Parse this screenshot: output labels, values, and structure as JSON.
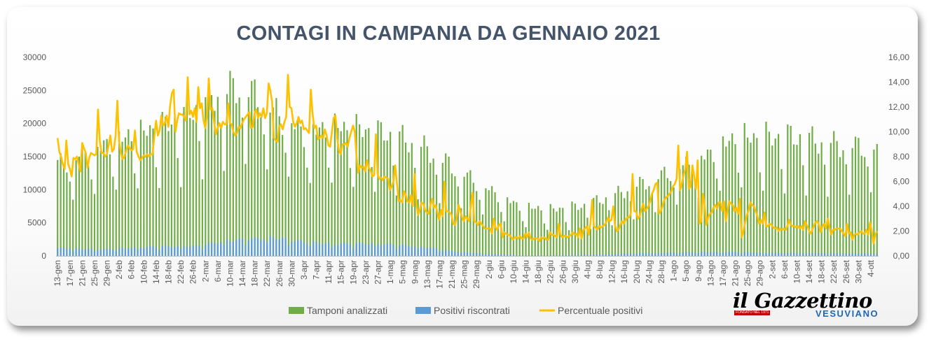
{
  "title": "CONTAGI IN CAMPANIA DA GENNAIO 2021",
  "logo": {
    "main": "il Gazzettino",
    "sub": "VESUVIANO",
    "tag": "FONDATO NEL 1971"
  },
  "colors": {
    "tamponi": "#70ad47",
    "positivi": "#5b9bd5",
    "percentuale": "#ffc000",
    "title": "#44546a",
    "axis_text": "#595959"
  },
  "chart_data": {
    "type": "bar",
    "title": "CONTAGI IN CAMPANIA DA GENNAIO 2021",
    "x_start": "2021-01-13",
    "x_end": "2021-10-06",
    "y_left": {
      "min": 0,
      "max": 30000,
      "ticks": [
        "0",
        "5000",
        "10000",
        "15000",
        "20000",
        "25000",
        "30000"
      ]
    },
    "y_right": {
      "min": 0,
      "max": 16,
      "ticks": [
        "0,00",
        "2,00",
        "4,00",
        "6,00",
        "8,00",
        "10,00",
        "12,00",
        "14,00",
        "16,00"
      ]
    },
    "x_tick_labels": [
      "13-gen",
      "17-gen",
      "21-gen",
      "25-gen",
      "29-gen",
      "2-feb",
      "6-feb",
      "10-feb",
      "14-feb",
      "18-feb",
      "22-feb",
      "26-feb",
      "2-mar",
      "6-mar",
      "10-mar",
      "14-mar",
      "18-mar",
      "22-mar",
      "26-mar",
      "30-mar",
      "3-apr",
      "7-apr",
      "11-apr",
      "15-apr",
      "19-apr",
      "23-apr",
      "27-apr",
      "1-mag",
      "5-mag",
      "9-mag",
      "13-mag",
      "17-mag",
      "21-mag",
      "25-mag",
      "29-mag",
      "2-giu",
      "6-giu",
      "10-giu",
      "14-giu",
      "18-giu",
      "22-giu",
      "26-giu",
      "30-giu",
      "4-lug",
      "8-lug",
      "12-lug",
      "16-lug",
      "20-lug",
      "24-lug",
      "28-lug",
      "1-ago",
      "5-ago",
      "9-ago",
      "13-ago",
      "17-ago",
      "21-ago",
      "25-ago",
      "29-ago",
      "2-set",
      "6-set",
      "10-set",
      "14-set",
      "18-set",
      "22-set",
      "26-set",
      "30-set",
      "4-ott"
    ],
    "grid": false,
    "legend_position": "bottom",
    "series": [
      {
        "name": "Tamponi analizzati",
        "type": "bar",
        "axis": "left",
        "anchors": [
          [
            0,
            13800
          ],
          [
            10,
            15500
          ],
          [
            20,
            17500
          ],
          [
            30,
            19000
          ],
          [
            40,
            20500
          ],
          [
            50,
            24000
          ],
          [
            60,
            25800
          ],
          [
            70,
            22000
          ],
          [
            80,
            18500
          ],
          [
            90,
            19500
          ],
          [
            100,
            19000
          ],
          [
            110,
            18000
          ],
          [
            120,
            16000
          ],
          [
            130,
            13000
          ],
          [
            140,
            10000
          ],
          [
            150,
            7500
          ],
          [
            160,
            7000
          ],
          [
            170,
            7500
          ],
          [
            180,
            9000
          ],
          [
            190,
            11000
          ],
          [
            200,
            13000
          ],
          [
            210,
            15000
          ],
          [
            220,
            18000
          ],
          [
            230,
            18000
          ],
          [
            240,
            18000
          ],
          [
            250,
            17000
          ],
          [
            266,
            16500
          ]
        ]
      },
      {
        "name": "Positivi riscontrati",
        "type": "bar",
        "axis": "left",
        "anchors": [
          [
            0,
            1200
          ],
          [
            15,
            1000
          ],
          [
            30,
            1400
          ],
          [
            45,
            1500
          ],
          [
            55,
            2300
          ],
          [
            70,
            2800
          ],
          [
            80,
            2100
          ],
          [
            90,
            1800
          ],
          [
            100,
            1900
          ],
          [
            110,
            1700
          ],
          [
            120,
            1300
          ],
          [
            130,
            600
          ],
          [
            140,
            300
          ],
          [
            150,
            130
          ],
          [
            165,
            130
          ],
          [
            175,
            200
          ],
          [
            185,
            350
          ],
          [
            200,
            500
          ],
          [
            210,
            600
          ],
          [
            220,
            600
          ],
          [
            230,
            450
          ],
          [
            245,
            400
          ],
          [
            266,
            350
          ]
        ]
      },
      {
        "name": "Percentuale positivi",
        "type": "line",
        "axis": "right",
        "values": [
          9.5,
          8.4,
          8.0,
          7.4,
          7.0,
          9.3,
          7.4,
          7.0,
          6.4,
          7.9,
          7.8,
          8.0,
          7.4,
          6.8,
          9.1,
          8.7,
          8.3,
          7.1,
          7.9,
          8.3,
          8.2,
          8.1,
          8.2,
          11.8,
          9.3,
          8.3,
          8.3,
          8.0,
          8.2,
          8.9,
          9.7,
          8.4,
          8.6,
          9.7,
          12.5,
          9.2,
          8.3,
          7.8,
          8.0,
          8.5,
          8.9,
          8.7,
          8.5,
          8.6,
          10.1,
          8.4,
          8.0,
          7.7,
          7.9,
          8.1,
          8.0,
          8.2,
          8.0,
          8.2,
          8.2,
          9.6,
          10.9,
          9.7,
          10.1,
          11.3,
          10.5,
          10.7,
          11.3,
          10.4,
          12.1,
          13.1,
          13.4,
          10.0,
          10.9,
          11.5,
          11.4,
          11.4,
          11.2,
          10.9,
          14.4,
          11.4,
          11.7,
          11.2,
          11.9,
          10.8,
          13.6,
          11.9,
          12.3,
          10.9,
          10.3,
          11.3,
          14.3,
          11.8,
          11.9,
          10.8,
          9.8,
          10.3,
          10.7,
          10.3,
          10.8,
          10.6,
          10.6,
          12.3,
          10.7,
          10.6,
          10.0,
          9.7,
          9.9,
          10.4,
          10.3,
          10.7,
          11.0,
          11.2,
          11.4,
          11.6,
          10.3,
          10.4,
          11.5,
          11.8,
          11.1,
          11.5,
          11.2,
          11.9,
          11.1,
          11.5,
          13.9,
          13.3,
          12.4,
          9.5,
          9.3,
          9.2,
          10.4,
          10.6,
          10.2,
          10.8,
          11.2,
          14.6,
          12.0,
          11.9,
          10.8,
          10.4,
          10.7,
          11.2,
          10.7,
          10.9,
          10.2,
          10.3,
          10.1,
          9.9,
          13.4,
          11.5,
          10.3,
          10.5,
          9.4,
          9.5,
          9.7,
          9.5,
          10.2,
          9.7,
          8.9,
          8.8,
          10.0,
          11.1,
          11.3,
          9.5,
          8.5,
          8.2,
          9.0,
          9.0,
          9.1,
          8.8,
          9.5,
          10.0,
          10.5,
          10.0,
          8.0,
          6.7,
          7.3,
          7.1,
          7.2,
          6.8,
          7.7,
          7.1,
          6.9,
          6.4,
          6.5,
          9.8,
          6.6,
          6.2,
          6.3,
          6.1,
          6.4,
          6.3,
          6.2,
          5.3,
          5.6,
          6.0,
          7.3,
          5.8,
          4.4,
          4.5,
          4.3,
          5.2,
          4.9,
          4.4,
          4.3,
          4.9,
          4.0,
          6.6,
          4.3,
          3.3,
          3.7,
          4.3,
          4.2,
          3.7,
          3.5,
          3.4,
          4.1,
          4.6,
          3.9,
          4.1,
          3.5,
          2.9,
          3.7,
          3.2,
          6.0,
          3.6,
          3.6,
          3.5,
          3.3,
          2.6,
          2.5,
          3.1,
          4.1,
          3.6,
          3.1,
          2.8,
          3.2,
          3.0,
          2.8,
          4.0,
          5.1,
          2.8,
          2.7,
          2.5,
          2.8,
          2.6,
          2.4,
          2.2,
          2.2,
          2.2,
          2.2,
          1.8,
          3.0,
          2.3,
          2.1,
          2.5,
          2.6,
          1.5,
          1.9,
          1.8,
          1.7,
          1.7,
          1.5,
          1.3,
          1.5,
          1.5,
          1.4,
          1.6,
          1.4,
          1.4,
          1.8,
          1.5,
          1.9,
          1.4,
          1.3,
          1.4,
          1.4,
          1.4,
          1.2,
          1.5,
          1.4,
          1.5,
          1.3,
          1.3,
          1.9,
          1.7,
          1.7,
          1.6,
          1.5,
          2.6,
          1.7,
          1.5,
          1.6,
          1.6,
          1.5,
          1.6,
          1.7,
          1.9,
          1.7,
          1.8,
          1.5,
          2.2,
          1.4,
          2.1,
          2.2,
          2.4,
          1.7,
          2.6,
          4.5,
          2.4,
          2.3,
          2.1,
          2.4,
          2.3,
          2.4,
          2.5,
          2.7,
          3.1,
          2.8,
          2.9,
          4.0,
          2.5,
          2.0,
          2.1,
          2.5,
          2.8,
          2.6,
          2.9,
          3.1,
          3.1,
          3.4,
          6.6,
          3.6,
          3.6,
          3.0,
          3.2,
          3.7,
          4.2,
          3.6,
          3.8,
          4.0,
          4.4,
          5.0,
          5.3,
          5.8,
          5.9,
          3.4,
          3.6,
          4.0,
          4.5,
          4.7,
          4.8,
          5.0,
          5.2,
          5.6,
          5.8,
          6.2,
          8.9,
          5.3,
          5.8,
          6.5,
          7.0,
          8.4,
          5.4,
          5.6,
          7.3,
          6.4,
          5.4,
          7.7,
          2.6,
          2.8,
          5.0,
          4.1,
          2.5,
          3.1,
          3.4,
          3.5,
          3.9,
          4.1,
          3.8,
          4.3,
          4.3,
          3.6,
          4.4,
          2.8,
          3.7,
          4.4,
          4.2,
          4.1,
          3.6,
          3.9,
          3.4,
          4.6,
          1.5,
          2.0,
          2.7,
          3.3,
          3.7,
          4.3,
          4.1,
          4.0,
          3.6,
          3.2,
          2.6,
          2.9,
          2.6,
          3.5,
          2.4,
          2.4,
          2.6,
          2.5,
          2.3,
          2.2,
          2.3,
          2.0,
          2.2,
          2.1,
          2.2,
          2.1,
          2.4,
          2.9,
          2.5,
          2.4,
          2.4,
          2.3,
          2.4,
          2.2,
          2.4,
          2.1,
          2.8,
          2.5,
          2.2,
          1.8,
          2.0,
          2.4,
          2.7,
          2.8,
          2.5,
          1.9,
          2.4,
          2.6,
          2.2,
          3.0,
          2.3,
          1.7,
          2.1,
          2.1,
          2.2,
          2.2,
          2.2,
          2.0,
          1.8,
          1.6,
          2.6,
          1.8,
          1.9,
          1.3,
          1.7,
          1.8,
          1.7,
          1.9,
          2.0,
          1.8,
          1.8,
          2.1,
          1.7,
          2.7,
          2.0,
          1.0,
          1.7,
          2.0
        ]
      }
    ]
  }
}
